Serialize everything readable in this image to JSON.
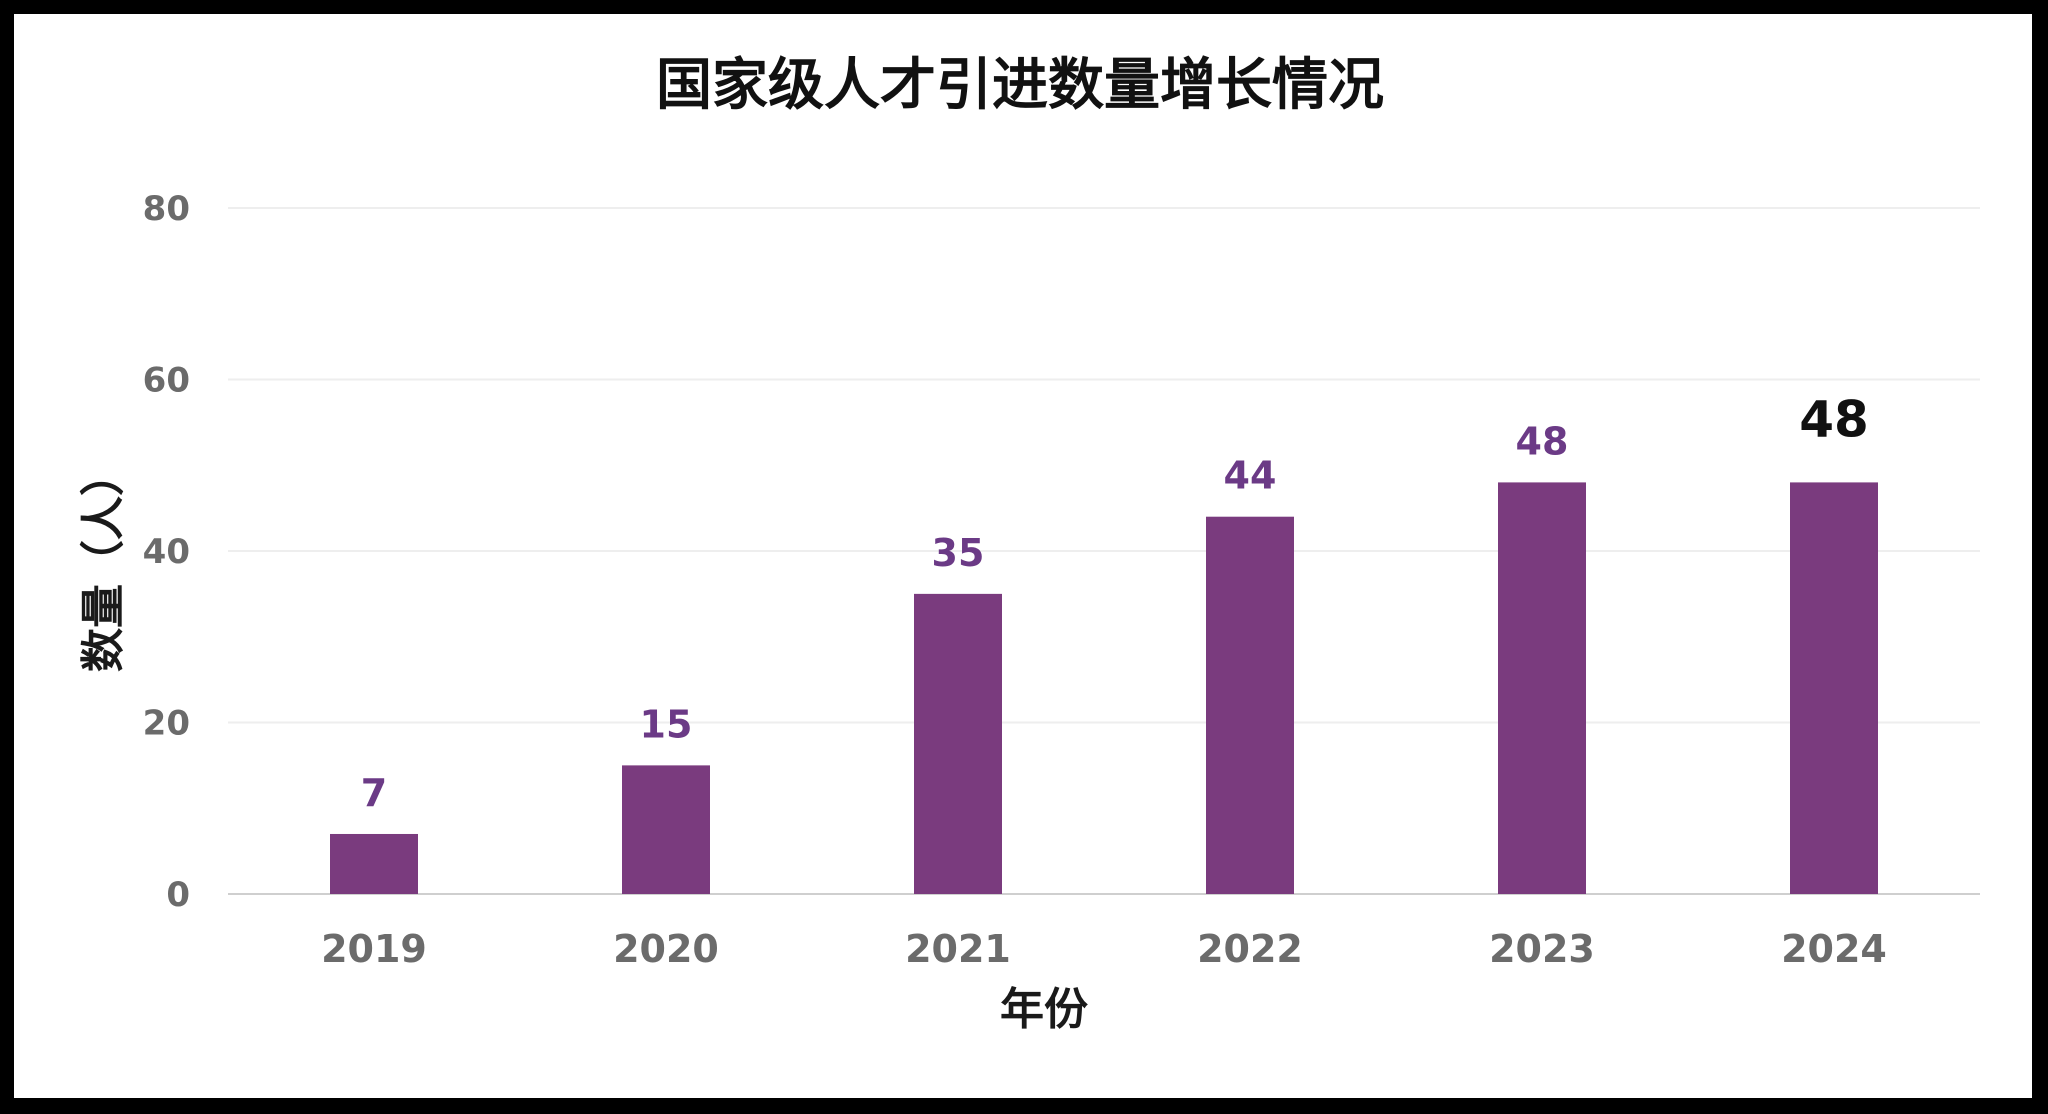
{
  "chart_data": {
    "type": "bar",
    "title": "国家级人才引进数量增长情况",
    "xlabel": "年份",
    "ylabel": "数量（人）",
    "categories": [
      "2019",
      "2020",
      "2021",
      "2022",
      "2023",
      "2024"
    ],
    "values": [
      7,
      15,
      35,
      44,
      48,
      48
    ],
    "ylim": [
      0,
      80
    ],
    "yticks": [
      0,
      20,
      40,
      60,
      80
    ],
    "grid": true,
    "legend": "none",
    "bar_color": "#7a3b7e",
    "label_color": "#6b3a86",
    "emphasized_label_index": 5
  }
}
